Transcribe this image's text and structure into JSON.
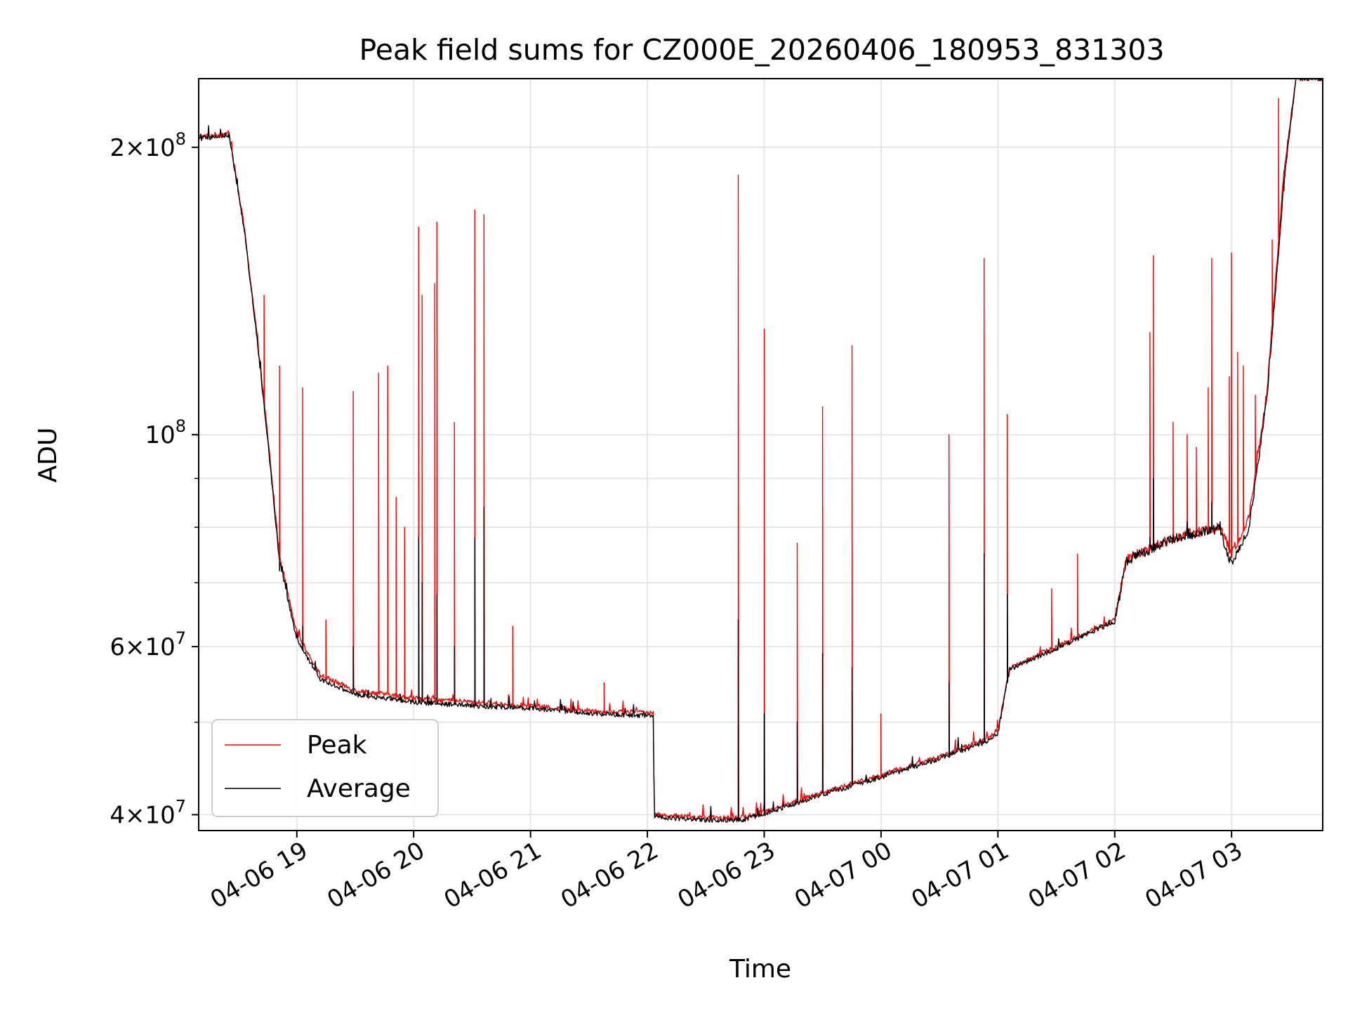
{
  "chart_data": {
    "type": "line",
    "title": "Peak field sums for CZ000E_20260406_180953_831303",
    "xlabel": "Time",
    "ylabel": "ADU",
    "yscale": "log",
    "ylim": [
      38500000,
      236000000
    ],
    "xlim_hours": [
      18.16,
      27.78
    ],
    "grid": true,
    "legend_position": "lower-left",
    "x_ticks": [
      {
        "hour": 19,
        "label": "04-06 19"
      },
      {
        "hour": 20,
        "label": "04-06 20"
      },
      {
        "hour": 21,
        "label": "04-06 21"
      },
      {
        "hour": 22,
        "label": "04-06 22"
      },
      {
        "hour": 23,
        "label": "04-06 23"
      },
      {
        "hour": 24,
        "label": "04-07 00"
      },
      {
        "hour": 25,
        "label": "04-07 01"
      },
      {
        "hour": 26,
        "label": "04-07 02"
      },
      {
        "hour": 27,
        "label": "04-07 03"
      }
    ],
    "y_major_ticks": [
      {
        "value": 40000000,
        "mant": "4",
        "exp": "7"
      },
      {
        "value": 60000000,
        "mant": "6",
        "exp": "7"
      },
      {
        "value": 100000000,
        "mant": "",
        "exp": "8"
      },
      {
        "value": 200000000,
        "mant": "2",
        "exp": "8"
      }
    ],
    "y_minor_ticks": [
      50000000,
      70000000,
      80000000,
      90000000
    ],
    "series": [
      {
        "name": "Peak",
        "color": "#ff0000",
        "baseline": [
          [
            18.16,
            205000000
          ],
          [
            18.42,
            207000000
          ],
          [
            18.55,
            165000000
          ],
          [
            18.65,
            130000000
          ],
          [
            18.75,
            100000000
          ],
          [
            18.85,
            75000000
          ],
          [
            19.0,
            62000000
          ],
          [
            19.2,
            56000000
          ],
          [
            19.5,
            54000000
          ],
          [
            20.0,
            53000000
          ],
          [
            20.5,
            52500000
          ],
          [
            21.0,
            52000000
          ],
          [
            21.6,
            51300000
          ],
          [
            22.05,
            51200000
          ],
          [
            22.06,
            40000000
          ],
          [
            22.5,
            39700000
          ],
          [
            22.8,
            39700000
          ],
          [
            23.0,
            40300000
          ],
          [
            23.5,
            42200000
          ],
          [
            24.0,
            44000000
          ],
          [
            24.5,
            46000000
          ],
          [
            24.9,
            48000000
          ],
          [
            25.0,
            49000000
          ],
          [
            25.1,
            57000000
          ],
          [
            25.5,
            60000000
          ],
          [
            26.0,
            64000000
          ],
          [
            26.1,
            74000000
          ],
          [
            26.5,
            78000000
          ],
          [
            26.9,
            80000000
          ],
          [
            27.0,
            75000000
          ],
          [
            27.15,
            82000000
          ],
          [
            27.3,
            110000000
          ],
          [
            27.45,
            190000000
          ],
          [
            27.55,
            236000000
          ],
          [
            27.78,
            236000000
          ]
        ],
        "spikes": [
          [
            18.72,
            140000000
          ],
          [
            18.85,
            118000000
          ],
          [
            19.05,
            112000000
          ],
          [
            19.25,
            64000000
          ],
          [
            19.48,
            111000000
          ],
          [
            19.7,
            116000000
          ],
          [
            19.78,
            118000000
          ],
          [
            19.85,
            86000000
          ],
          [
            19.92,
            80000000
          ],
          [
            20.04,
            165000000
          ],
          [
            20.07,
            140000000
          ],
          [
            20.18,
            144000000
          ],
          [
            20.2,
            167000000
          ],
          [
            20.35,
            103000000
          ],
          [
            20.52,
            172000000
          ],
          [
            20.6,
            170000000
          ],
          [
            20.85,
            63000000
          ],
          [
            21.63,
            55000000
          ],
          [
            22.78,
            187000000
          ],
          [
            23.0,
            129000000
          ],
          [
            23.28,
            77000000
          ],
          [
            23.5,
            107000000
          ],
          [
            23.75,
            124000000
          ],
          [
            24.0,
            51000000
          ],
          [
            24.58,
            100000000
          ],
          [
            24.88,
            153000000
          ],
          [
            25.08,
            105000000
          ],
          [
            25.46,
            69000000
          ],
          [
            25.68,
            75000000
          ],
          [
            26.3,
            128000000
          ],
          [
            26.33,
            154000000
          ],
          [
            26.5,
            103000000
          ],
          [
            26.62,
            100000000
          ],
          [
            26.7,
            97000000
          ],
          [
            26.8,
            112000000
          ],
          [
            26.83,
            153000000
          ],
          [
            26.98,
            115000000
          ],
          [
            27.0,
            155000000
          ],
          [
            27.05,
            122000000
          ],
          [
            27.1,
            118000000
          ],
          [
            27.2,
            110000000
          ],
          [
            27.35,
            160000000
          ],
          [
            27.4,
            225000000
          ],
          [
            27.45,
            180000000
          ]
        ]
      },
      {
        "name": "Average",
        "color": "#000000",
        "baseline": [
          [
            18.16,
            204000000
          ],
          [
            18.42,
            206000000
          ],
          [
            18.55,
            164000000
          ],
          [
            18.65,
            129000000
          ],
          [
            18.75,
            99000000
          ],
          [
            18.85,
            74000000
          ],
          [
            19.0,
            61000000
          ],
          [
            19.2,
            55500000
          ],
          [
            19.5,
            53500000
          ],
          [
            20.0,
            52500000
          ],
          [
            20.5,
            52000000
          ],
          [
            21.0,
            51700000
          ],
          [
            21.6,
            51000000
          ],
          [
            22.05,
            50800000
          ],
          [
            22.06,
            39800000
          ],
          [
            22.5,
            39500000
          ],
          [
            22.8,
            39500000
          ],
          [
            23.0,
            40100000
          ],
          [
            23.5,
            42000000
          ],
          [
            24.0,
            43800000
          ],
          [
            24.5,
            45800000
          ],
          [
            24.9,
            47700000
          ],
          [
            25.0,
            48700000
          ],
          [
            25.1,
            56800000
          ],
          [
            25.5,
            59700000
          ],
          [
            26.0,
            63800000
          ],
          [
            26.1,
            73800000
          ],
          [
            26.5,
            77800000
          ],
          [
            26.9,
            79800000
          ],
          [
            27.0,
            73000000
          ],
          [
            27.15,
            80000000
          ],
          [
            27.3,
            108000000
          ],
          [
            27.45,
            185000000
          ],
          [
            27.55,
            236000000
          ],
          [
            27.78,
            236000000
          ]
        ],
        "spikes": [
          [
            18.85,
            72000000
          ],
          [
            19.05,
            63000000
          ],
          [
            19.48,
            60000000
          ],
          [
            20.04,
            78000000
          ],
          [
            20.07,
            70000000
          ],
          [
            20.2,
            68000000
          ],
          [
            20.35,
            60000000
          ],
          [
            20.52,
            78000000
          ],
          [
            20.6,
            84000000
          ],
          [
            22.78,
            64000000
          ],
          [
            23.0,
            51000000
          ],
          [
            23.28,
            50000000
          ],
          [
            23.5,
            59000000
          ],
          [
            23.75,
            57000000
          ],
          [
            24.58,
            55000000
          ],
          [
            24.88,
            75000000
          ],
          [
            25.08,
            68000000
          ],
          [
            26.3,
            78000000
          ],
          [
            26.33,
            90000000
          ],
          [
            26.83,
            85000000
          ]
        ]
      }
    ]
  }
}
